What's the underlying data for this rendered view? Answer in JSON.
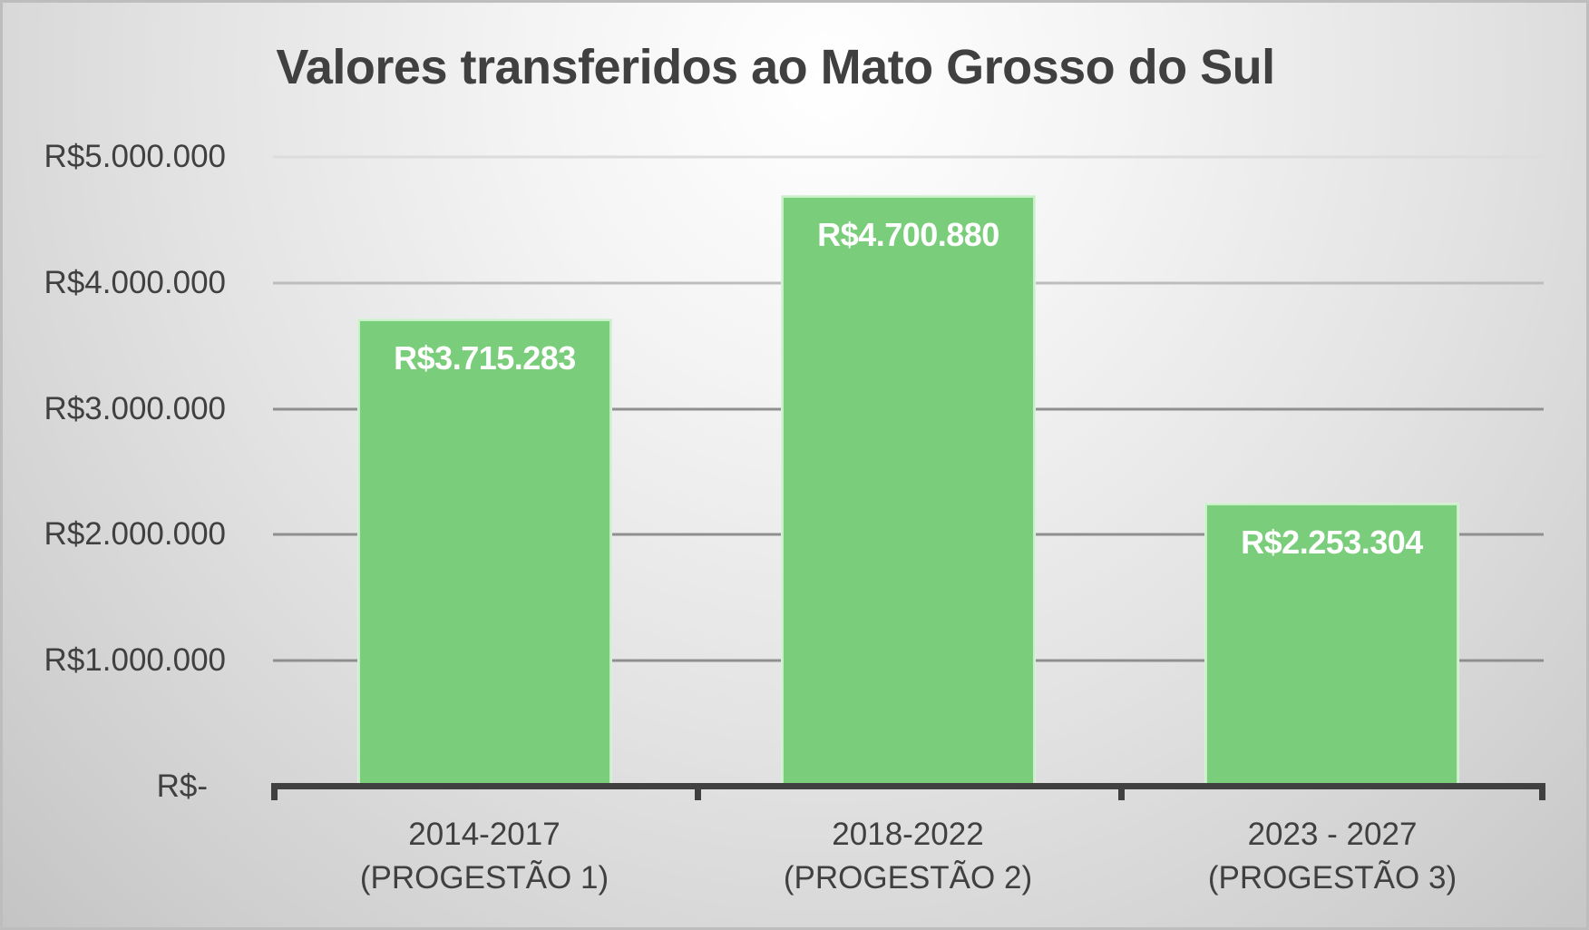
{
  "chart_data": {
    "type": "bar",
    "title": "Valores transferidos ao Mato Grosso do Sul",
    "categories": [
      "2014-2017 (PROGESTÃO 1)",
      "2018-2022 (PROGESTÃO 2)",
      "2023 - 2027 (PROGESTÃO 3)"
    ],
    "category_lines": [
      [
        "2014-2017",
        "(PROGESTÃO 1)"
      ],
      [
        "2018-2022",
        "(PROGESTÃO 2)"
      ],
      [
        "2023 - 2027",
        "(PROGESTÃO 3)"
      ]
    ],
    "values": [
      3715283,
      4700880,
      2253304
    ],
    "data_labels": [
      "R$3.715.283",
      "R$4.700.880",
      "R$2.253.304"
    ],
    "xlabel": "",
    "ylabel": "",
    "ylim": [
      0,
      5000000
    ],
    "yticks": [
      0,
      1000000,
      2000000,
      3000000,
      4000000,
      5000000
    ],
    "ytick_labels": [
      "R$-",
      "R$1.000.000",
      "R$2.000.000",
      "R$3.000.000",
      "R$4.000.000",
      "R$5.000.000"
    ],
    "grid": true,
    "legend": null,
    "colors": {
      "bar": "#7acd7a",
      "text": "#404040",
      "label": "#ffffff",
      "axis": "#404040"
    }
  }
}
